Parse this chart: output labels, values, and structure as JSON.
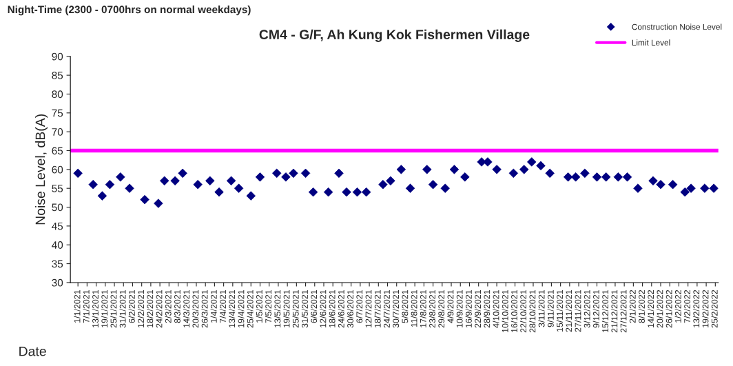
{
  "chart_data": {
    "type": "scatter",
    "title": "CM4 - G/F, Ah Kung Kok Fishermen Village",
    "subtitle": "Night-Time (2300 - 0700hrs on normal weekdays)",
    "xlabel": "Date",
    "ylabel": "Noise Level, dB(A)",
    "x": [
      "2021-01-01",
      "2021-01-11",
      "2021-01-17",
      "2021-01-22",
      "2021-01-29",
      "2021-02-04",
      "2021-02-14",
      "2021-02-23",
      "2021-02-27",
      "2021-03-06",
      "2021-03-11",
      "2021-03-21",
      "2021-03-29",
      "2021-04-04",
      "2021-04-12",
      "2021-04-17",
      "2021-04-25",
      "2021-05-01",
      "2021-05-12",
      "2021-05-18",
      "2021-05-23",
      "2021-05-31",
      "2021-06-05",
      "2021-06-15",
      "2021-06-22",
      "2021-06-27",
      "2021-07-04",
      "2021-07-10",
      "2021-07-21",
      "2021-07-26",
      "2021-08-02",
      "2021-08-08",
      "2021-08-19",
      "2021-08-23",
      "2021-08-31",
      "2021-09-06",
      "2021-09-13",
      "2021-09-24",
      "2021-09-28",
      "2021-10-04",
      "2021-10-15",
      "2021-10-22",
      "2021-10-27",
      "2021-11-02",
      "2021-11-08",
      "2021-11-20",
      "2021-11-25",
      "2021-12-01",
      "2021-12-09",
      "2021-12-15",
      "2021-12-23",
      "2021-12-29",
      "2022-01-05",
      "2022-01-15",
      "2022-01-20",
      "2022-01-28",
      "2022-02-05",
      "2022-02-09",
      "2022-02-18",
      "2022-02-24"
    ],
    "series": [
      {
        "name": "Construction Noise Level",
        "color": "#000080",
        "values": [
          59,
          56,
          53,
          56,
          58,
          55,
          52,
          51,
          57,
          57,
          59,
          56,
          57,
          54,
          57,
          55,
          53,
          58,
          59,
          58,
          59,
          59,
          54,
          54,
          59,
          54,
          54,
          54,
          56,
          57,
          60,
          55,
          60,
          56,
          55,
          60,
          58,
          62,
          62,
          60,
          59,
          60,
          62,
          61,
          59,
          58,
          58,
          59,
          58,
          58,
          58,
          58,
          55,
          57,
          56,
          56,
          54,
          55,
          55,
          55
        ]
      }
    ],
    "marker": "diamond",
    "ref_lines": [
      {
        "axis": "y",
        "value": 65,
        "label": "Limit Level",
        "color": "#ff00ff",
        "line_style": "solid"
      }
    ],
    "ylim": [
      30,
      90
    ],
    "yticks": [
      30,
      35,
      40,
      45,
      50,
      55,
      60,
      65,
      70,
      75,
      80,
      85,
      90
    ],
    "xlim": [
      "2020-12-27",
      "2022-02-27"
    ],
    "xticks": [
      {
        "value": "2021-01-01",
        "label": "1/1/2021"
      },
      {
        "value": "2021-01-07",
        "label": "7/1/2021"
      },
      {
        "value": "2021-01-13",
        "label": "13/1/2021"
      },
      {
        "value": "2021-01-19",
        "label": "19/1/2021"
      },
      {
        "value": "2021-01-25",
        "label": "25/1/2021"
      },
      {
        "value": "2021-01-31",
        "label": "31/1/2021"
      },
      {
        "value": "2021-02-06",
        "label": "6/2/2021"
      },
      {
        "value": "2021-02-12",
        "label": "12/2/2021"
      },
      {
        "value": "2021-02-18",
        "label": "18/2/2021"
      },
      {
        "value": "2021-02-24",
        "label": "24/2/2021"
      },
      {
        "value": "2021-03-02",
        "label": "2/3/2021"
      },
      {
        "value": "2021-03-08",
        "label": "8/3/2021"
      },
      {
        "value": "2021-03-14",
        "label": "14/3/2021"
      },
      {
        "value": "2021-03-20",
        "label": "20/3/2021"
      },
      {
        "value": "2021-03-26",
        "label": "26/3/2021"
      },
      {
        "value": "2021-04-01",
        "label": "1/4/2021"
      },
      {
        "value": "2021-04-07",
        "label": "7/4/2021"
      },
      {
        "value": "2021-04-13",
        "label": "13/4/2021"
      },
      {
        "value": "2021-04-19",
        "label": "19/4/2021"
      },
      {
        "value": "2021-04-25",
        "label": "25/4/2021"
      },
      {
        "value": "2021-05-01",
        "label": "1/5/2021"
      },
      {
        "value": "2021-05-07",
        "label": "7/5/2021"
      },
      {
        "value": "2021-05-13",
        "label": "13/5/2021"
      },
      {
        "value": "2021-05-19",
        "label": "19/5/2021"
      },
      {
        "value": "2021-05-25",
        "label": "25/5/2021"
      },
      {
        "value": "2021-05-31",
        "label": "31/5/2021"
      },
      {
        "value": "2021-06-06",
        "label": "6/6/2021"
      },
      {
        "value": "2021-06-12",
        "label": "12/6/2021"
      },
      {
        "value": "2021-06-18",
        "label": "18/6/2021"
      },
      {
        "value": "2021-06-24",
        "label": "24/6/2021"
      },
      {
        "value": "2021-06-30",
        "label": "30/6/2021"
      },
      {
        "value": "2021-07-06",
        "label": "6/7/2021"
      },
      {
        "value": "2021-07-12",
        "label": "12/7/2021"
      },
      {
        "value": "2021-07-18",
        "label": "18/7/2021"
      },
      {
        "value": "2021-07-24",
        "label": "24/7/2021"
      },
      {
        "value": "2021-07-30",
        "label": "30/7/2021"
      },
      {
        "value": "2021-08-05",
        "label": "5/8/2021"
      },
      {
        "value": "2021-08-11",
        "label": "11/8/2021"
      },
      {
        "value": "2021-08-17",
        "label": "17/8/2021"
      },
      {
        "value": "2021-08-23",
        "label": "23/8/2021"
      },
      {
        "value": "2021-08-29",
        "label": "29/8/2021"
      },
      {
        "value": "2021-09-04",
        "label": "4/9/2021"
      },
      {
        "value": "2021-09-10",
        "label": "10/9/2021"
      },
      {
        "value": "2021-09-16",
        "label": "16/9/2021"
      },
      {
        "value": "2021-09-22",
        "label": "22/9/2021"
      },
      {
        "value": "2021-09-28",
        "label": "28/9/2021"
      },
      {
        "value": "2021-10-04",
        "label": "4/10/2021"
      },
      {
        "value": "2021-10-10",
        "label": "10/10/2021"
      },
      {
        "value": "2021-10-16",
        "label": "16/10/2021"
      },
      {
        "value": "2021-10-22",
        "label": "22/10/2021"
      },
      {
        "value": "2021-10-28",
        "label": "28/10/2021"
      },
      {
        "value": "2021-11-03",
        "label": "3/11/2021"
      },
      {
        "value": "2021-11-09",
        "label": "9/11/2021"
      },
      {
        "value": "2021-11-15",
        "label": "15/11/2021"
      },
      {
        "value": "2021-11-21",
        "label": "21/11/2021"
      },
      {
        "value": "2021-11-27",
        "label": "27/11/2021"
      },
      {
        "value": "2021-12-03",
        "label": "3/12/2021"
      },
      {
        "value": "2021-12-09",
        "label": "9/12/2021"
      },
      {
        "value": "2021-12-15",
        "label": "15/12/2021"
      },
      {
        "value": "2021-12-21",
        "label": "21/12/2021"
      },
      {
        "value": "2021-12-27",
        "label": "27/12/2021"
      },
      {
        "value": "2022-01-02",
        "label": "2/1/2022"
      },
      {
        "value": "2022-01-08",
        "label": "8/1/2022"
      },
      {
        "value": "2022-01-14",
        "label": "14/1/2022"
      },
      {
        "value": "2022-01-20",
        "label": "20/1/2022"
      },
      {
        "value": "2022-01-26",
        "label": "26/1/2022"
      },
      {
        "value": "2022-02-01",
        "label": "1/2/2022"
      },
      {
        "value": "2022-02-07",
        "label": "7/2/2022"
      },
      {
        "value": "2022-02-13",
        "label": "13/2/2022"
      },
      {
        "value": "2022-02-19",
        "label": "19/2/2022"
      },
      {
        "value": "2022-02-25",
        "label": "25/2/2022"
      }
    ],
    "grid": false,
    "legend": "top right"
  }
}
